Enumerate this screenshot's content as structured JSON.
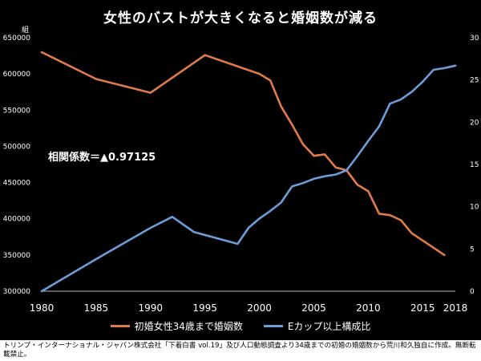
{
  "source_text": "トリンプ・インターナショナル・ジャパン株式会社「下着白書 vol.19」及び人口動態調査より34歳までの初婚の婚姻数から荒川和久独自に作成。無断転載禁止。",
  "annotation": "相関係数＝▲0.97125",
  "colors": {
    "background": "#000000",
    "marriages": "#e07b4a",
    "cup_ratio": "#6d9dd6",
    "text": "#ffffff"
  },
  "chart_data": {
    "type": "line",
    "title": "女性のバストが大きくなると婚姻数が減る",
    "y_left_unit": "組",
    "x_ticks": [
      1980,
      1985,
      1990,
      1995,
      2000,
      2005,
      2010,
      2015,
      2018
    ],
    "xlim": [
      1980,
      2018
    ],
    "y_left_lim": [
      300000,
      650000
    ],
    "y_left_ticks": [
      300000,
      350000,
      400000,
      450000,
      500000,
      550000,
      600000,
      650000
    ],
    "y_right_lim": [
      0,
      30
    ],
    "y_right_ticks": [
      0,
      5,
      10,
      15,
      20,
      25,
      30
    ],
    "grid": false,
    "legend_position": "bottom",
    "series": [
      {
        "name": "初婚女性34歳まで婚姻数",
        "axis": "left",
        "x": [
          1980,
          1985,
          1990,
          1995,
          2000,
          2001,
          2002,
          2003,
          2004,
          2005,
          2006,
          2007,
          2008,
          2009,
          2010,
          2011,
          2012,
          2013,
          2014,
          2015,
          2016,
          2017
        ],
        "y": [
          630000,
          593000,
          574000,
          626000,
          600000,
          591000,
          555000,
          530000,
          503000,
          487000,
          489000,
          471000,
          467000,
          447000,
          438000,
          407000,
          405000,
          398000,
          380000,
          370000,
          360000,
          350000
        ]
      },
      {
        "name": "Eカップ以上構成比",
        "axis": "right",
        "x": [
          1980,
          1985,
          1990,
          1992,
          1994,
          1996,
          1998,
          1999,
          2000,
          2001,
          2002,
          2003,
          2004,
          2005,
          2006,
          2007,
          2008,
          2009,
          2010,
          2011,
          2012,
          2013,
          2014,
          2015,
          2016,
          2017,
          2018
        ],
        "y": [
          0.0,
          3.8,
          7.5,
          8.8,
          7.0,
          6.3,
          5.6,
          7.5,
          8.6,
          9.5,
          10.5,
          12.4,
          12.8,
          13.3,
          13.6,
          13.8,
          14.3,
          16.0,
          17.8,
          19.5,
          22.2,
          22.7,
          23.6,
          24.8,
          26.2,
          26.4,
          26.7
        ]
      }
    ]
  }
}
